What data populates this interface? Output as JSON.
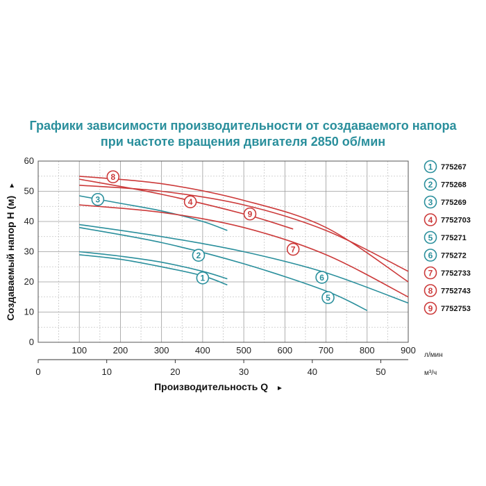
{
  "chart_data": {
    "type": "line",
    "title_lines": [
      "Графики зависимости производительности от создаваемого напора",
      "при частоте вращения двигателя 2850 об/мин"
    ],
    "ylabel": "Создаваемый напор H (м)",
    "ylabel_arrow": "►",
    "xlabel": "Производительность Q",
    "xlabel_arrow": "►",
    "x_unit_primary": "л/мин",
    "x_unit_secondary": "м³/ч",
    "xlim": [
      0,
      900
    ],
    "ylim": [
      0,
      60
    ],
    "x_ticks": [
      0,
      100,
      200,
      300,
      400,
      500,
      600,
      700,
      800,
      900
    ],
    "y_ticks": [
      0,
      10,
      20,
      30,
      40,
      50,
      60
    ],
    "x2_ticks": [
      0,
      10,
      20,
      30,
      40,
      50
    ],
    "grid": true,
    "legend_position": "right",
    "series": [
      {
        "marker": "1",
        "name": "775267",
        "color": "#2a8f9c",
        "x": [
          100,
          200,
          300,
          400,
          460
        ],
        "y": [
          29,
          27.5,
          25,
          22,
          19
        ],
        "marker_x": 400,
        "marker_y": 21.3
      },
      {
        "marker": "2",
        "name": "775268",
        "color": "#2a8f9c",
        "x": [
          100,
          200,
          300,
          400,
          460
        ],
        "y": [
          30,
          28.5,
          26.5,
          23.5,
          21
        ],
        "marker_x": 390,
        "marker_y": 28.8
      },
      {
        "marker": "3",
        "name": "775269",
        "color": "#2a8f9c",
        "x": [
          100,
          200,
          300,
          400,
          460
        ],
        "y": [
          48.5,
          46,
          43.5,
          40,
          37
        ],
        "marker_x": 145,
        "marker_y": 47.3
      },
      {
        "marker": "4",
        "name": "7752703",
        "color": "#cc3a3a",
        "x": [
          100,
          300,
          500,
          620
        ],
        "y": [
          54,
          49,
          42.5,
          37.5
        ],
        "marker_x": 370,
        "marker_y": 46.5
      },
      {
        "marker": "5",
        "name": "775271",
        "color": "#2a8f9c",
        "x": [
          100,
          300,
          500,
          700,
          800
        ],
        "y": [
          38,
          33,
          26,
          17,
          10.5
        ],
        "marker_x": 705,
        "marker_y": 14.8
      },
      {
        "marker": "6",
        "name": "775272",
        "color": "#2a8f9c",
        "x": [
          100,
          300,
          500,
          700,
          900
        ],
        "y": [
          39,
          35,
          30,
          23,
          13
        ],
        "marker_x": 690,
        "marker_y": 21.5
      },
      {
        "marker": "7",
        "name": "7752733",
        "color": "#cc3a3a",
        "x": [
          100,
          300,
          500,
          700,
          900
        ],
        "y": [
          45.5,
          43,
          38,
          29,
          15
        ],
        "marker_x": 620,
        "marker_y": 30.8
      },
      {
        "marker": "8",
        "name": "7752743",
        "color": "#cc3a3a",
        "x": [
          100,
          300,
          500,
          700,
          900
        ],
        "y": [
          55,
          52.5,
          47,
          38,
          20
        ],
        "marker_x": 182,
        "marker_y": 54.8
      },
      {
        "marker": "9",
        "name": "7752753",
        "color": "#cc3a3a",
        "x": [
          100,
          300,
          500,
          700,
          900
        ],
        "y": [
          52,
          50,
          45.5,
          37,
          23.5
        ],
        "marker_x": 515,
        "marker_y": 42.5
      }
    ]
  }
}
